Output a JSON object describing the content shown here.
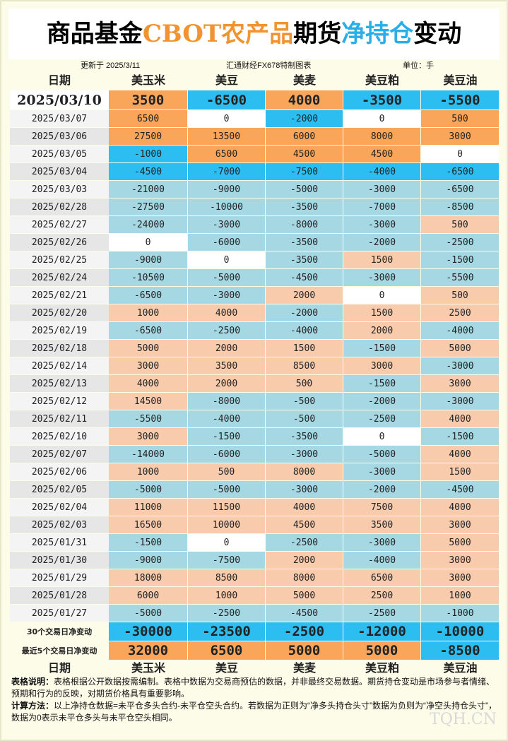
{
  "title_parts": [
    "商品基金",
    "CBOT农产品",
    "期货",
    "净持仓",
    "变动"
  ],
  "updated": "更新于 2025/3/11",
  "source": "汇通财经FX678特制图表",
  "unit": "单位：手",
  "date_header": "日期",
  "columns": [
    "美玉米",
    "美豆",
    "美麦",
    "美豆粕",
    "美豆油"
  ],
  "rows": [
    {
      "date": "2025/03/10",
      "values": [
        3500,
        -6500,
        4000,
        -3500,
        -5500
      ]
    },
    {
      "date": "2025/03/07",
      "values": [
        6500,
        0,
        -2000,
        0,
        500
      ]
    },
    {
      "date": "2025/03/06",
      "values": [
        27500,
        13500,
        6000,
        8000,
        3000
      ]
    },
    {
      "date": "2025/03/05",
      "values": [
        -1000,
        6500,
        4500,
        4500,
        0
      ]
    },
    {
      "date": "2025/03/04",
      "values": [
        -4500,
        -7000,
        -7500,
        -4000,
        -6500
      ]
    },
    {
      "date": "2025/03/03",
      "values": [
        -21000,
        -9000,
        -5000,
        -3000,
        -6500
      ]
    },
    {
      "date": "2025/02/28",
      "values": [
        -27500,
        -10000,
        -3500,
        -7000,
        -8500
      ]
    },
    {
      "date": "2025/02/27",
      "values": [
        -24000,
        -3000,
        -8000,
        -3000,
        500
      ]
    },
    {
      "date": "2025/02/26",
      "values": [
        0,
        -6000,
        -3500,
        -2000,
        -2500
      ]
    },
    {
      "date": "2025/02/25",
      "values": [
        -9000,
        0,
        -3500,
        1500,
        -1500
      ]
    },
    {
      "date": "2025/02/24",
      "values": [
        -10500,
        -5000,
        -4500,
        -3000,
        -5500
      ]
    },
    {
      "date": "2025/02/21",
      "values": [
        -6500,
        -3000,
        2000,
        0,
        500
      ]
    },
    {
      "date": "2025/02/20",
      "values": [
        1000,
        4000,
        -2000,
        1500,
        2500
      ]
    },
    {
      "date": "2025/02/19",
      "values": [
        -6500,
        -2500,
        -4000,
        2000,
        -4000
      ]
    },
    {
      "date": "2025/02/18",
      "values": [
        5000,
        2000,
        1500,
        -1500,
        5000
      ]
    },
    {
      "date": "2025/02/14",
      "values": [
        3000,
        3500,
        8500,
        3000,
        -3000
      ]
    },
    {
      "date": "2025/02/13",
      "values": [
        4000,
        2000,
        500,
        -1500,
        3000
      ]
    },
    {
      "date": "2025/02/12",
      "values": [
        14500,
        -8000,
        -500,
        -2000,
        -3000
      ]
    },
    {
      "date": "2025/02/11",
      "values": [
        -5500,
        -4000,
        -500,
        -2500,
        4000
      ]
    },
    {
      "date": "2025/02/10",
      "values": [
        3000,
        -1500,
        -3500,
        0,
        -1500
      ]
    },
    {
      "date": "2025/02/07",
      "values": [
        -14000,
        -6000,
        -3000,
        -5000,
        4000
      ]
    },
    {
      "date": "2025/02/06",
      "values": [
        1000,
        500,
        8000,
        -3000,
        1500
      ]
    },
    {
      "date": "2025/02/05",
      "values": [
        -5000,
        -5000,
        -3000,
        -2000,
        -4500
      ]
    },
    {
      "date": "2025/02/04",
      "values": [
        11000,
        11500,
        4000,
        7500,
        4000
      ]
    },
    {
      "date": "2025/02/03",
      "values": [
        16500,
        10000,
        4500,
        3500,
        3000
      ]
    },
    {
      "date": "2025/01/31",
      "values": [
        -1500,
        0,
        -2500,
        -3000,
        5000
      ]
    },
    {
      "date": "2025/01/30",
      "values": [
        -9000,
        -7500,
        2000,
        -4000,
        3000
      ]
    },
    {
      "date": "2025/01/29",
      "values": [
        18000,
        8500,
        8000,
        6500,
        3000
      ]
    },
    {
      "date": "2025/01/28",
      "values": [
        6000,
        1000,
        5000,
        2500,
        1000
      ]
    },
    {
      "date": "2025/01/27",
      "values": [
        -5000,
        -2500,
        -4500,
        -2500,
        -1000
      ]
    }
  ],
  "summary": [
    {
      "label": "30个交易日净变动",
      "values": [
        -30000,
        -23500,
        -2500,
        -12000,
        -10000
      ]
    },
    {
      "label": "最近5个交易日净变动",
      "values": [
        32000,
        6500,
        5000,
        5000,
        -8500
      ]
    }
  ],
  "notes": [
    {
      "label": "表格说明：",
      "text": "表格根据公开数据按需编制。表格中数据为交易商预估的数据，并非最终交易数据。期货持仓变动是市场参与者情绪、预期和行为的反映，对期货价格具有重要影响。"
    },
    {
      "label": "计算方法：",
      "text": "以上净持仓数据=未平仓多头合约-未平仓空头合约。若数据为正则为“净多头持仓头寸”数据为负则为“净空头持仓头寸”，数据为0表示未平仓多头与未平仓空头相同。"
    }
  ],
  "watermark": "TQH.CN"
}
